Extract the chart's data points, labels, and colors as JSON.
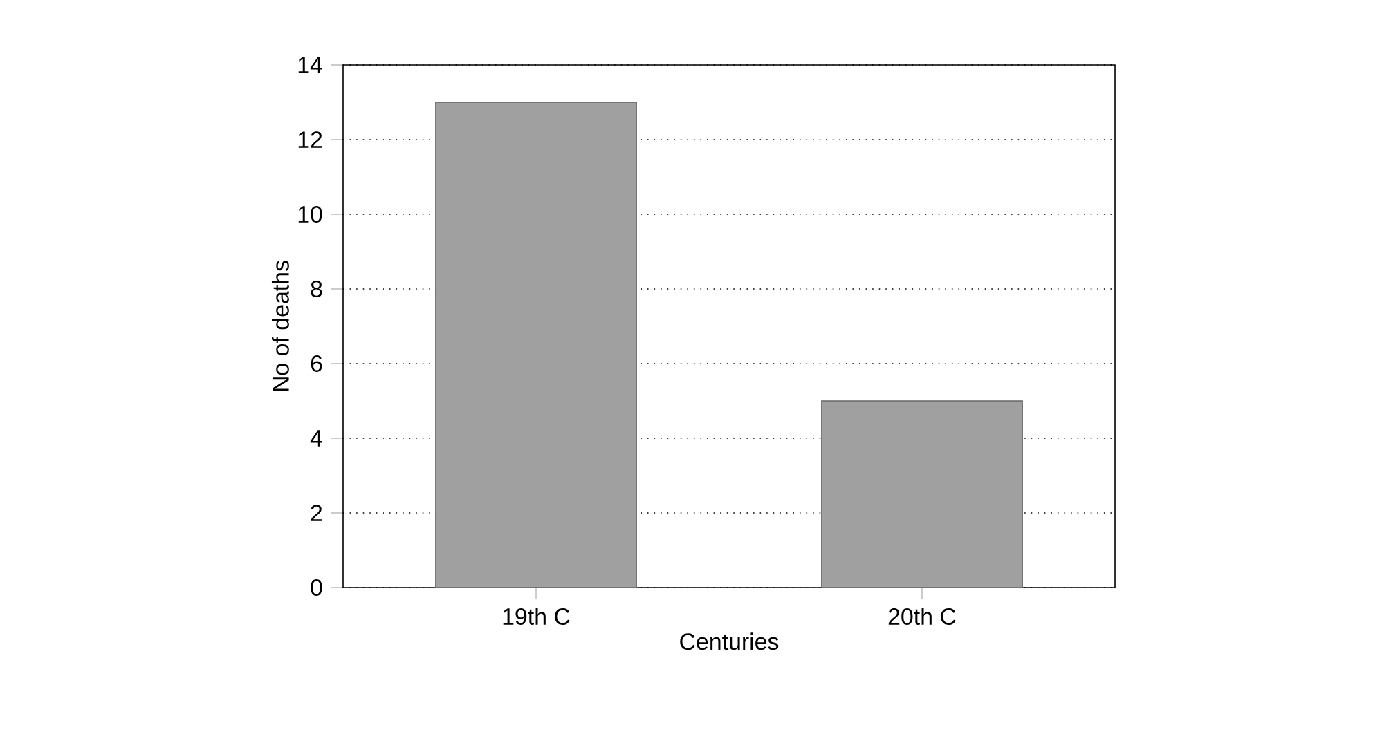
{
  "chart_data": {
    "type": "bar",
    "xlabel": "Centuries",
    "ylabel": "No of deaths",
    "categories": [
      "19th C",
      "20th C"
    ],
    "values": [
      13,
      5
    ],
    "color": "#a0a0a0",
    "ylim": [
      0,
      14
    ],
    "yticks": [
      0,
      2,
      4,
      6,
      8,
      10,
      12,
      14
    ],
    "grid": "y"
  }
}
